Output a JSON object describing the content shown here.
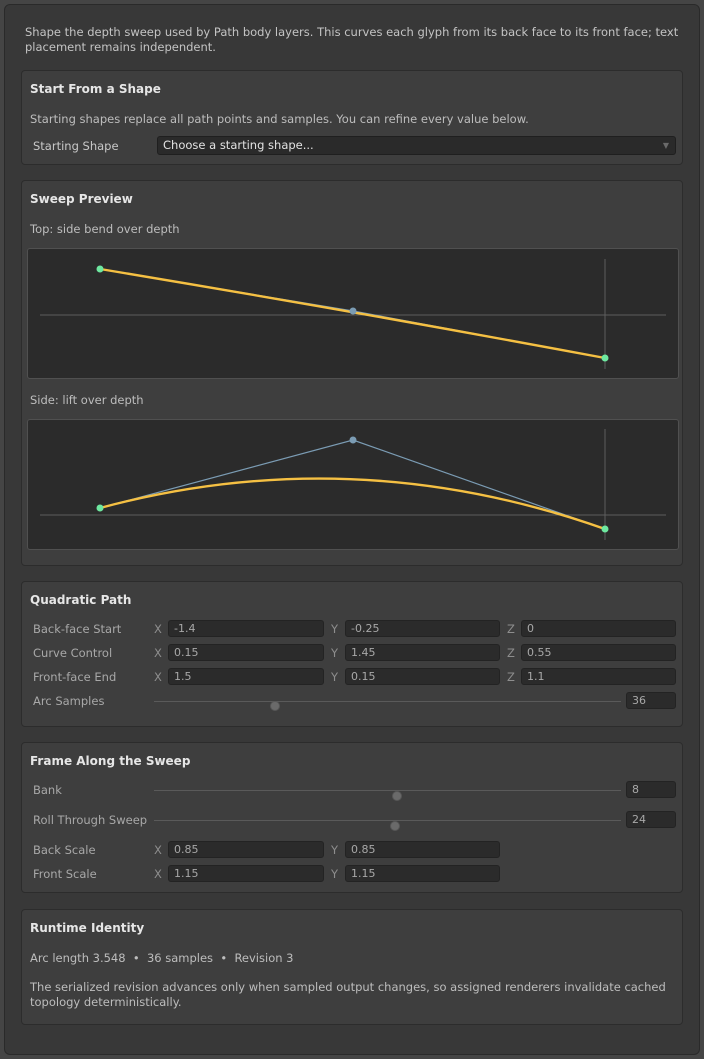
{
  "intro": "Shape the depth sweep used by Path body layers. This curves each glyph from its back face to its front face; text placement remains independent.",
  "start_shape": {
    "title": "Start From a Shape",
    "note": "Starting shapes replace all path points and samples. You can refine every value below.",
    "label": "Starting Shape",
    "dropdown_value": "Choose a starting shape..."
  },
  "preview": {
    "title": "Sweep Preview",
    "top_caption": "Top: side bend over depth",
    "side_caption": "Side: lift over depth",
    "colors": {
      "curve": "#f5c043",
      "control": "#7b9cb4",
      "endpoint": "#6ee8a0",
      "axis": "#5e5e5e"
    }
  },
  "quadratic": {
    "title": "Quadratic Path",
    "rows": [
      {
        "label": "Back-face Start",
        "x": "-1.4",
        "y": "-0.25",
        "z": "0"
      },
      {
        "label": "Curve Control",
        "x": "0.15",
        "y": "1.45",
        "z": "0.55"
      },
      {
        "label": "Front-face End",
        "x": "1.5",
        "y": "0.15",
        "z": "1.1"
      }
    ],
    "axes": {
      "x": "X",
      "y": "Y",
      "z": "Z"
    },
    "arc_samples": {
      "label": "Arc Samples",
      "value": "36",
      "fraction": 0.26
    }
  },
  "frame": {
    "title": "Frame Along the Sweep",
    "bank": {
      "label": "Bank",
      "value": "8",
      "fraction": 0.52
    },
    "roll": {
      "label": "Roll Through Sweep",
      "value": "24",
      "fraction": 0.515
    },
    "back_scale": {
      "label": "Back Scale",
      "x": "0.85",
      "y": "0.85"
    },
    "front_scale": {
      "label": "Front Scale",
      "x": "1.15",
      "y": "1.15"
    },
    "axes": {
      "x": "X",
      "y": "Y"
    }
  },
  "runtime": {
    "title": "Runtime Identity",
    "stats": "Arc length 3.548  •  36 samples  •  Revision 3",
    "description": "The serialized revision advances only when sampled output changes, so assigned renderers invalidate cached topology deterministically."
  }
}
